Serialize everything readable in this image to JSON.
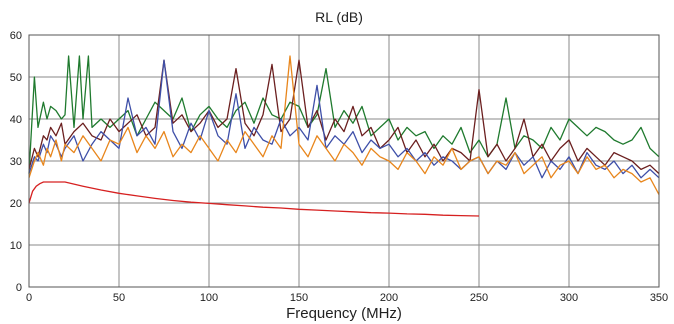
{
  "chart_data": {
    "type": "line",
    "title": "RL (dB)",
    "xlabel": "Frequency (MHz)",
    "ylabel": "",
    "xlim": [
      0,
      350
    ],
    "ylim": [
      0,
      60
    ],
    "xticks": [
      "0",
      "50",
      "100",
      "150",
      "200",
      "250",
      "300",
      "350"
    ],
    "yticks": [
      "0",
      "10",
      "20",
      "30",
      "40",
      "50",
      "60"
    ],
    "grid": true,
    "legend": "none",
    "limit_line": {
      "color": "#d62020",
      "x": [
        0,
        2,
        4,
        6,
        8,
        10,
        12,
        15,
        20,
        30,
        40,
        50,
        60,
        70,
        80,
        90,
        100,
        110,
        120,
        130,
        140,
        150,
        160,
        170,
        180,
        190,
        200,
        210,
        220,
        230,
        240,
        250
      ],
      "y": [
        20.0,
        22.8,
        24.0,
        24.6,
        25.0,
        25.0,
        25.0,
        25.0,
        25.0,
        24.0,
        23.1,
        22.3,
        21.7,
        21.1,
        20.6,
        20.2,
        19.9,
        19.6,
        19.3,
        19.0,
        18.8,
        18.5,
        18.3,
        18.1,
        17.9,
        17.7,
        17.6,
        17.4,
        17.3,
        17.1,
        17.0,
        16.9
      ]
    },
    "series": [
      {
        "color": "#1f7a2e",
        "x": [
          0,
          3,
          5,
          8,
          10,
          12,
          15,
          18,
          20,
          22,
          25,
          28,
          30,
          33,
          35,
          40,
          45,
          50,
          55,
          60,
          65,
          70,
          75,
          80,
          85,
          90,
          95,
          100,
          105,
          110,
          115,
          120,
          125,
          130,
          135,
          140,
          145,
          150,
          155,
          160,
          165,
          170,
          175,
          180,
          185,
          190,
          195,
          200,
          205,
          210,
          215,
          220,
          225,
          230,
          235,
          240,
          245,
          250,
          255,
          260,
          265,
          270,
          275,
          280,
          285,
          290,
          295,
          300,
          305,
          310,
          315,
          320,
          325,
          330,
          335,
          340,
          345,
          350
        ],
        "y": [
          27,
          50,
          38,
          44,
          40,
          43,
          42,
          40,
          41,
          55,
          38,
          55,
          40,
          55,
          38,
          40,
          38,
          40,
          42,
          36,
          40,
          44,
          42,
          40,
          45,
          37,
          41,
          43,
          40,
          38,
          42,
          44,
          39,
          45,
          41,
          40,
          44,
          43,
          38,
          41,
          52,
          38,
          42,
          39,
          43,
          36,
          38,
          40,
          35,
          38,
          36,
          37,
          33,
          36,
          34,
          38,
          32,
          35,
          31,
          34,
          45,
          33,
          36,
          35,
          33,
          38,
          35,
          40,
          38,
          36,
          38,
          37,
          35,
          34,
          35,
          38,
          33,
          31
        ]
      },
      {
        "color": "#6b1f1f",
        "x": [
          0,
          3,
          5,
          8,
          10,
          12,
          15,
          18,
          20,
          25,
          30,
          35,
          40,
          45,
          50,
          55,
          60,
          65,
          70,
          75,
          80,
          85,
          90,
          95,
          100,
          105,
          110,
          115,
          120,
          125,
          130,
          135,
          140,
          145,
          150,
          155,
          160,
          165,
          170,
          175,
          180,
          185,
          190,
          195,
          200,
          205,
          210,
          215,
          220,
          225,
          230,
          235,
          240,
          245,
          250,
          255,
          260,
          265,
          270,
          275,
          280,
          285,
          290,
          295,
          300,
          305,
          310,
          315,
          320,
          325,
          330,
          335,
          340,
          345,
          350
        ],
        "y": [
          28,
          33,
          31,
          36,
          35,
          38,
          36,
          39,
          34,
          37,
          39,
          36,
          35,
          40,
          37,
          39,
          41,
          36,
          38,
          54,
          39,
          41,
          37,
          39,
          42,
          38,
          40,
          52,
          39,
          36,
          41,
          53,
          37,
          40,
          54,
          38,
          42,
          35,
          40,
          37,
          43,
          36,
          38,
          33,
          35,
          38,
          32,
          35,
          31,
          34,
          30,
          33,
          32,
          30,
          47,
          31,
          34,
          30,
          33,
          40,
          31,
          34,
          30,
          33,
          35,
          30,
          33,
          31,
          29,
          32,
          31,
          30,
          28,
          29,
          27
        ]
      },
      {
        "color": "#3e4fa8",
        "x": [
          0,
          3,
          5,
          8,
          10,
          12,
          15,
          18,
          20,
          25,
          30,
          35,
          40,
          45,
          50,
          55,
          60,
          65,
          70,
          75,
          80,
          85,
          90,
          95,
          100,
          105,
          110,
          115,
          120,
          125,
          130,
          135,
          140,
          145,
          150,
          155,
          160,
          165,
          170,
          175,
          180,
          185,
          190,
          195,
          200,
          205,
          210,
          215,
          220,
          225,
          230,
          235,
          240,
          245,
          250,
          255,
          260,
          265,
          270,
          275,
          280,
          285,
          290,
          295,
          300,
          305,
          310,
          315,
          320,
          325,
          330,
          335,
          340,
          345,
          350
        ],
        "y": [
          27,
          31,
          30,
          34,
          32,
          36,
          34,
          31,
          33,
          36,
          30,
          34,
          37,
          35,
          33,
          45,
          36,
          38,
          34,
          54,
          37,
          33,
          39,
          35,
          42,
          36,
          34,
          46,
          33,
          38,
          35,
          34,
          40,
          36,
          38,
          35,
          48,
          33,
          36,
          34,
          37,
          32,
          35,
          33,
          34,
          31,
          33,
          30,
          32,
          29,
          31,
          30,
          28,
          30,
          31,
          27,
          30,
          28,
          32,
          29,
          31,
          26,
          30,
          28,
          31,
          27,
          32,
          29,
          28,
          30,
          27,
          29,
          26,
          28,
          26
        ]
      },
      {
        "color": "#e8861c",
        "x": [
          0,
          3,
          5,
          8,
          10,
          12,
          15,
          18,
          20,
          25,
          30,
          35,
          40,
          45,
          50,
          55,
          60,
          65,
          70,
          75,
          80,
          85,
          90,
          95,
          100,
          105,
          110,
          115,
          120,
          125,
          130,
          135,
          140,
          145,
          150,
          155,
          160,
          165,
          170,
          175,
          180,
          185,
          190,
          195,
          200,
          205,
          210,
          215,
          220,
          225,
          230,
          235,
          240,
          245,
          250,
          255,
          260,
          265,
          270,
          275,
          280,
          285,
          290,
          295,
          300,
          305,
          310,
          315,
          320,
          325,
          330,
          335,
          340,
          345,
          350
        ],
        "y": [
          26,
          30,
          32,
          29,
          33,
          31,
          35,
          30,
          34,
          32,
          36,
          33,
          30,
          35,
          34,
          38,
          32,
          36,
          33,
          37,
          31,
          34,
          32,
          36,
          33,
          30,
          35,
          32,
          37,
          34,
          31,
          36,
          33,
          55,
          34,
          31,
          36,
          33,
          30,
          34,
          32,
          29,
          33,
          31,
          30,
          28,
          32,
          30,
          27,
          31,
          29,
          33,
          28,
          30,
          31,
          27,
          30,
          29,
          32,
          27,
          29,
          31,
          26,
          29,
          30,
          27,
          31,
          28,
          29,
          26,
          28,
          27,
          25,
          26,
          22
        ]
      }
    ]
  }
}
